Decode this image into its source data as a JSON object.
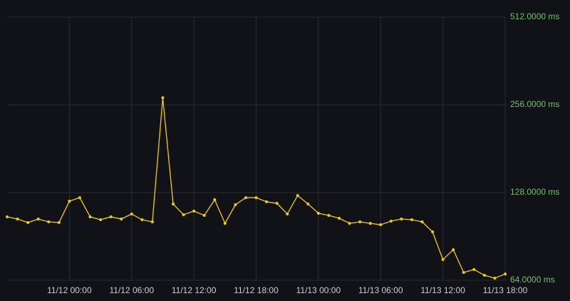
{
  "chart_data": {
    "type": "line",
    "x": [
      "11/11 18:00",
      "11/11 19:00",
      "11/11 20:00",
      "11/11 21:00",
      "11/11 22:00",
      "11/11 23:00",
      "11/12 00:00",
      "11/12 01:00",
      "11/12 02:00",
      "11/12 03:00",
      "11/12 04:00",
      "11/12 05:00",
      "11/12 06:00",
      "11/12 07:00",
      "11/12 08:00",
      "11/12 09:00",
      "11/12 10:00",
      "11/12 11:00",
      "11/12 12:00",
      "11/12 13:00",
      "11/12 14:00",
      "11/12 15:00",
      "11/12 16:00",
      "11/12 17:00",
      "11/12 18:00",
      "11/12 19:00",
      "11/12 20:00",
      "11/12 21:00",
      "11/12 22:00",
      "11/12 23:00",
      "11/13 00:00",
      "11/13 01:00",
      "11/13 02:00",
      "11/13 03:00",
      "11/13 04:00",
      "11/13 05:00",
      "11/13 06:00",
      "11/13 07:00",
      "11/13 08:00",
      "11/13 09:00",
      "11/13 10:00",
      "11/13 11:00",
      "11/13 12:00",
      "11/13 13:00",
      "11/13 14:00",
      "11/13 15:00",
      "11/13 16:00",
      "11/13 17:00",
      "11/13 18:00"
    ],
    "series": [
      {
        "color": "#f2cc0c",
        "values": [
          105.7,
          103.9,
          101.0,
          103.9,
          101.6,
          101.0,
          119.6,
          123.0,
          105.7,
          103.3,
          105.7,
          103.9,
          108.1,
          103.3,
          101.6,
          270.8,
          117.0,
          107.5,
          110.6,
          106.9,
          121.0,
          100.4,
          116.3,
          123.0,
          123.0,
          119.0,
          117.6,
          108.1,
          125.1,
          117.0,
          108.7,
          106.9,
          104.5,
          100.4,
          101.6,
          100.4,
          99.3,
          102.2,
          103.9,
          103.3,
          101.6,
          93.9,
          75.4,
          81.5,
          68.1,
          69.7,
          66.6,
          65.1,
          67.3
        ]
      }
    ],
    "xlim": [
      "11/11 18:00",
      "11/13 18:00"
    ],
    "xticks": [
      "11/12 00:00",
      "11/12 06:00",
      "11/12 12:00",
      "11/12 18:00",
      "11/13 00:00",
      "11/13 06:00",
      "11/13 12:00",
      "11/13 18:00"
    ],
    "ylim": [
      64,
      512
    ],
    "yticks": [
      {
        "value": 64,
        "label": "64.0000 ms"
      },
      {
        "value": 128,
        "label": "128.0000 ms"
      },
      {
        "value": 256,
        "label": "256.0000 ms"
      },
      {
        "value": 512,
        "label": "512.0000 ms"
      }
    ],
    "log_scale": true,
    "log_base": 2,
    "grid": true
  }
}
